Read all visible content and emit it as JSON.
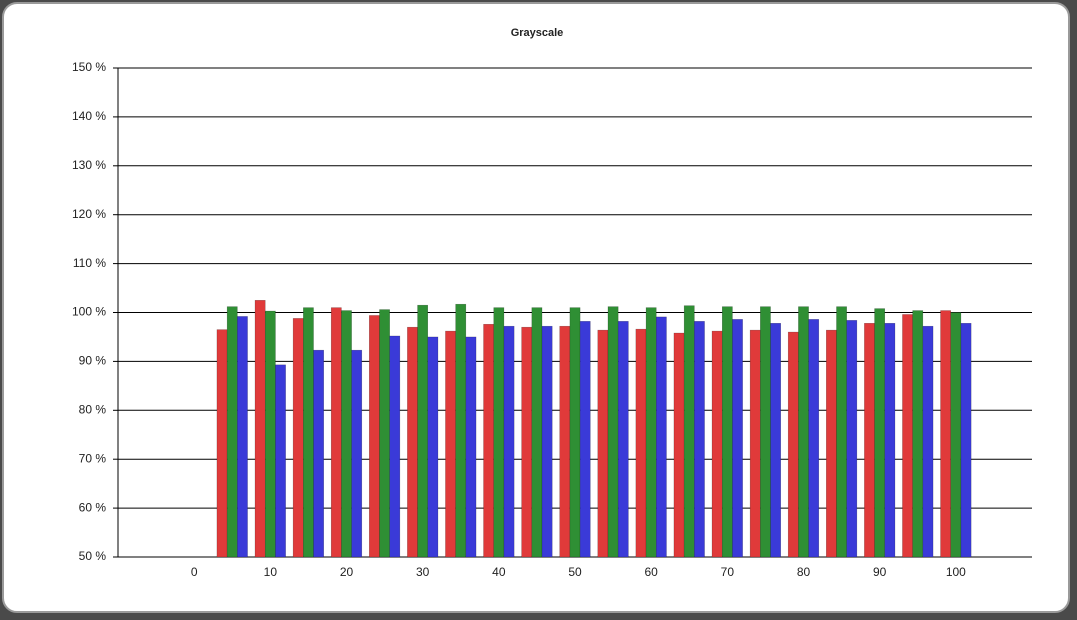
{
  "chart_data": {
    "type": "bar",
    "title": "Grayscale",
    "categories": [
      "0",
      null,
      "10",
      null,
      "20",
      null,
      "30",
      null,
      "40",
      null,
      "50",
      null,
      "60",
      null,
      "70",
      null,
      "80",
      null,
      "90",
      null,
      "100"
    ],
    "series": [
      {
        "color": "#e03a3a",
        "values": [
          null,
          96.5,
          102.5,
          98.8,
          101,
          99.4,
          97,
          96.2,
          97.6,
          97,
          97.2,
          96.4,
          96.6,
          95.8,
          96.2,
          96.4,
          96,
          96.4,
          97.8,
          99.6,
          100.4
        ]
      },
      {
        "color": "#2f8f34",
        "values": [
          null,
          101.2,
          100.3,
          101,
          100.4,
          100.6,
          101.5,
          101.7,
          101,
          101,
          101,
          101.2,
          101,
          101.4,
          101.2,
          101.2,
          101.2,
          101.2,
          100.8,
          100.4,
          100
        ]
      },
      {
        "color": "#3a3ad8",
        "values": [
          null,
          99.2,
          89.3,
          92.3,
          92.3,
          95.2,
          95,
          95,
          97.2,
          97.2,
          98.2,
          98.2,
          99.1,
          98.2,
          98.6,
          97.8,
          98.6,
          98.4,
          97.8,
          97.2,
          97.8
        ]
      }
    ],
    "ylim": [
      50,
      150
    ],
    "yticks": [
      {
        "value": 50,
        "label": "50 %"
      },
      {
        "value": 60,
        "label": "60 %"
      },
      {
        "value": 70,
        "label": "70 %"
      },
      {
        "value": 80,
        "label": "80 %"
      },
      {
        "value": 90,
        "label": "90 %"
      },
      {
        "value": 100,
        "label": "100 %"
      },
      {
        "value": 110,
        "label": "110 %"
      },
      {
        "value": 120,
        "label": "120 %"
      },
      {
        "value": 130,
        "label": "130 %"
      },
      {
        "value": 140,
        "label": "140 %"
      },
      {
        "value": 150,
        "label": "150 %"
      }
    ],
    "grid": true
  }
}
